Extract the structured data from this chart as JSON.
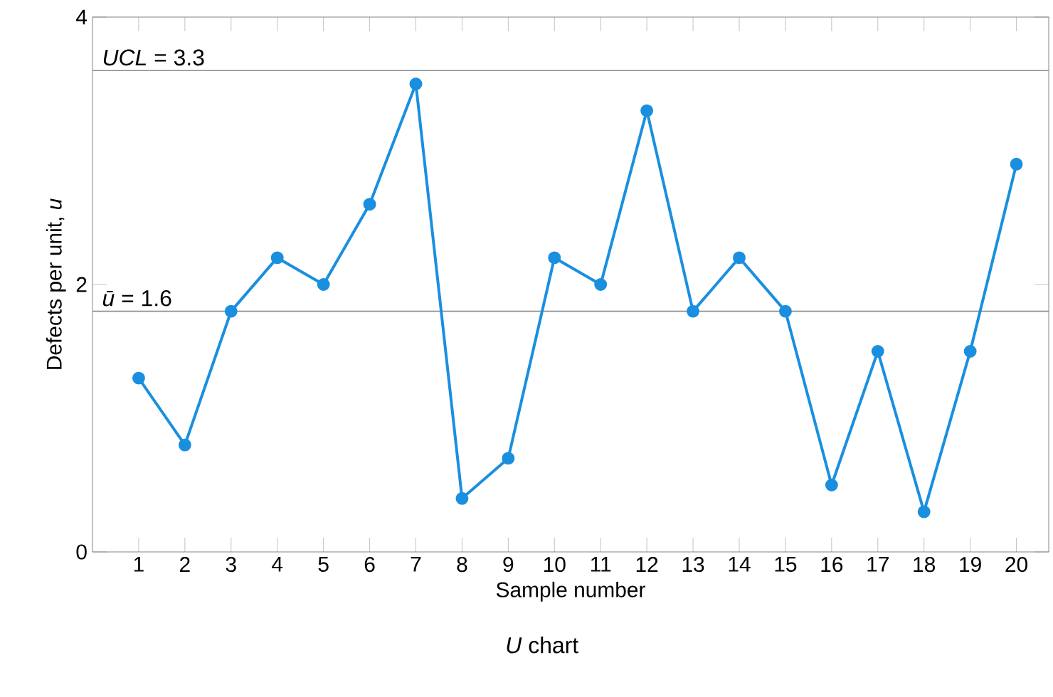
{
  "chart_data": {
    "type": "line",
    "title": "*U* chart",
    "xlabel": "Sample number",
    "ylabel": "Defects per unit, *u*",
    "categories": [
      "1",
      "2",
      "3",
      "4",
      "5",
      "6",
      "7",
      "8",
      "9",
      "10",
      "11",
      "12",
      "13",
      "14",
      "15",
      "16",
      "17",
      "18",
      "19",
      "20"
    ],
    "series": [
      {
        "color": "#1a8fe0",
        "values": [
          1.3,
          0.8,
          1.8,
          2.2,
          2.0,
          2.6,
          3.5,
          0.4,
          0.7,
          2.2,
          2.0,
          3.3,
          1.8,
          2.2,
          1.8,
          0.5,
          1.5,
          0.3,
          1.5,
          2.9
        ]
      }
    ],
    "marker": "circle",
    "line_style": "solid",
    "ylim": [
      0,
      4
    ],
    "yticks": [
      0,
      2,
      4
    ],
    "ref_lines": [
      {
        "axis": "y",
        "value": 3.6,
        "color": "#8c8c8c"
      },
      {
        "axis": "y",
        "value": 1.8,
        "color": "#8c8c8c"
      }
    ],
    "annotations": [
      "*UCL* = 3.3",
      "*ū* = 1.6"
    ]
  }
}
